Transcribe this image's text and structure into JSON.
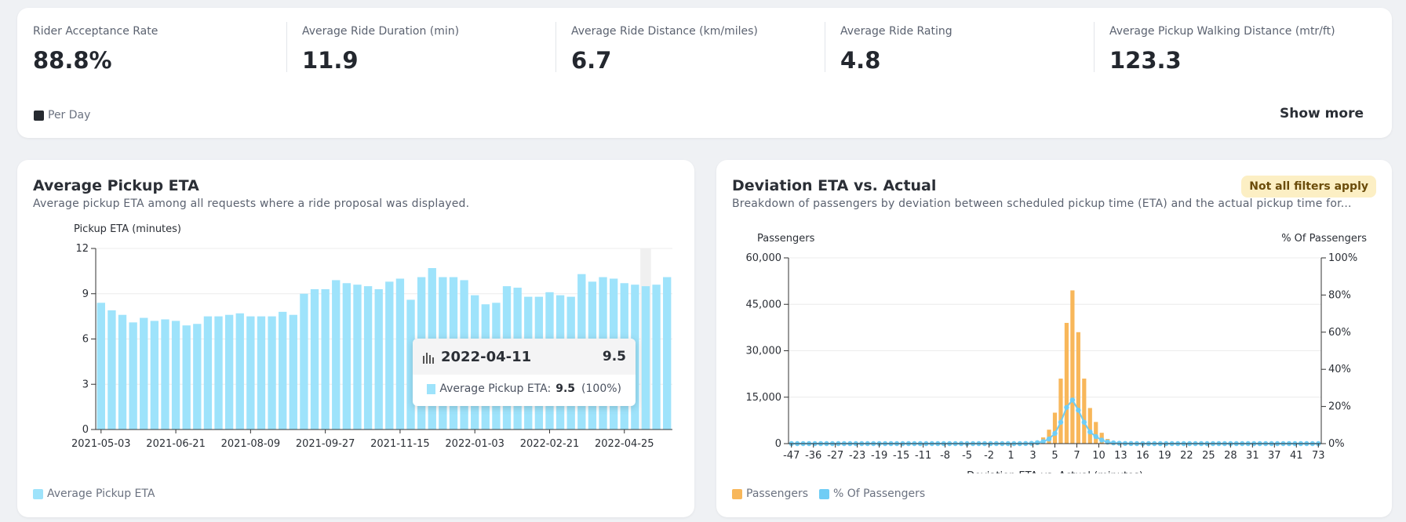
{
  "kpis": [
    {
      "label": "Rider Acceptance Rate",
      "value": "88.8%"
    },
    {
      "label": "Average Ride Duration (min)",
      "value": "11.9"
    },
    {
      "label": "Average Ride Distance (km/miles)",
      "value": "6.7"
    },
    {
      "label": "Average Ride Rating",
      "value": "4.8"
    },
    {
      "label": "Average Pickup Walking Distance (mtr/ft)",
      "value": "123.3"
    }
  ],
  "per_day_label": "Per Day",
  "show_more_label": "Show more",
  "colors": {
    "eta_bar": "#9ee3fb",
    "passengers": "#f8b75a",
    "pct": "#6fcdf5"
  },
  "eta_chart": {
    "title": "Average Pickup ETA",
    "subtitle": "Average pickup ETA among all requests where a ride proposal was displayed.",
    "legend": "Average Pickup ETA",
    "tooltip": {
      "date": "2022-04-11",
      "value": "9.5",
      "series": "Average Pickup ETA:",
      "pct": "(100%)"
    }
  },
  "dev_chart": {
    "title": "Deviation ETA vs. Actual",
    "subtitle": "Breakdown of passengers by deviation between scheduled pickup time (ETA) and the actual pickup time for...",
    "badge": "Not all filters apply",
    "legend": [
      "Passengers",
      "% Of Passengers"
    ]
  },
  "chart_data": [
    {
      "type": "bar",
      "ylabel": "Pickup ETA (minutes)",
      "ylim": [
        0,
        12
      ],
      "yticks": [
        "0",
        "3",
        "6",
        "9",
        "12"
      ],
      "xticks": [
        "2021-05-03",
        "2021-06-21",
        "2021-08-09",
        "2021-09-27",
        "2021-11-15",
        "2022-01-03",
        "2022-02-21",
        "2022-04-25"
      ],
      "series": [
        {
          "name": "Average Pickup ETA",
          "values": [
            8.4,
            7.9,
            7.6,
            7.1,
            7.4,
            7.2,
            7.3,
            7.2,
            6.9,
            7.0,
            7.5,
            7.5,
            7.6,
            7.7,
            7.5,
            7.5,
            7.5,
            7.8,
            7.6,
            9.0,
            9.3,
            9.3,
            9.9,
            9.7,
            9.6,
            9.5,
            9.3,
            9.8,
            10.0,
            8.6,
            10.1,
            10.7,
            10.1,
            10.1,
            9.9,
            8.9,
            8.3,
            8.4,
            9.5,
            9.4,
            8.8,
            8.8,
            9.1,
            8.9,
            8.8,
            10.3,
            9.8,
            10.1,
            10.0,
            9.7,
            9.6,
            9.5,
            9.6,
            10.1
          ]
        }
      ],
      "highlight_index": 51
    },
    {
      "type": "bar",
      "xlabel": "Deviation ETA vs. Actual (minutes)",
      "ylabel": "Passengers",
      "y2label": "% Of Passengers",
      "ylim": [
        0,
        60000
      ],
      "y2lim": [
        0,
        100
      ],
      "yticks": [
        "0",
        "15,000",
        "30,000",
        "45,000",
        "60,000"
      ],
      "y2ticks": [
        "0%",
        "20%",
        "40%",
        "60%",
        "80%",
        "100%"
      ],
      "xticks": [
        "-47",
        "-36",
        "-27",
        "-23",
        "-19",
        "-15",
        "-11",
        "-8",
        "-5",
        "-2",
        "1",
        "3",
        "5",
        "7",
        "10",
        "13",
        "16",
        "19",
        "22",
        "25",
        "28",
        "31",
        "37",
        "41",
        "73"
      ],
      "series": [
        {
          "name": "Passengers",
          "values": [
            0,
            0,
            0,
            0,
            0,
            0,
            0,
            0,
            0,
            0,
            0,
            0,
            0,
            0,
            0,
            0,
            0,
            0,
            0,
            0,
            0,
            0,
            0,
            0,
            0,
            0,
            0,
            0,
            0,
            0,
            0,
            0,
            0,
            0,
            0,
            0,
            0,
            0,
            0,
            0,
            100,
            300,
            900,
            2000,
            4500,
            10000,
            21000,
            39000,
            49500,
            36000,
            21000,
            11500,
            7000,
            3500,
            1500,
            700,
            300,
            150,
            80,
            40,
            20,
            10,
            0,
            0,
            0,
            0,
            0,
            0,
            0,
            0,
            0,
            0,
            0,
            0,
            0,
            0,
            0,
            0,
            0,
            0,
            0,
            0,
            0,
            0,
            0,
            0,
            0,
            0,
            0,
            0,
            0
          ]
        },
        {
          "name": "% Of Passengers",
          "values": [
            0,
            0,
            0,
            0,
            0,
            0,
            0,
            0,
            0,
            0,
            0,
            0,
            0,
            0,
            0,
            0,
            0,
            0,
            0,
            0,
            0,
            0,
            0,
            0,
            0,
            0,
            0,
            0,
            0,
            0,
            0,
            0,
            0,
            0,
            0,
            0,
            0,
            0,
            0,
            0,
            0.05,
            0.15,
            0.5,
            1.1,
            2.5,
            5.5,
            11.5,
            19.5,
            23.5,
            18,
            11.5,
            6.3,
            3.8,
            1.9,
            0.8,
            0.4,
            0.2,
            0.1,
            0.05,
            0,
            0,
            0,
            0,
            0,
            0,
            0,
            0,
            0,
            0,
            0,
            0,
            0,
            0,
            0,
            0,
            0,
            0,
            0,
            0,
            0,
            0,
            0,
            0,
            0,
            0,
            0,
            0,
            0,
            0,
            0,
            0
          ]
        }
      ]
    }
  ]
}
